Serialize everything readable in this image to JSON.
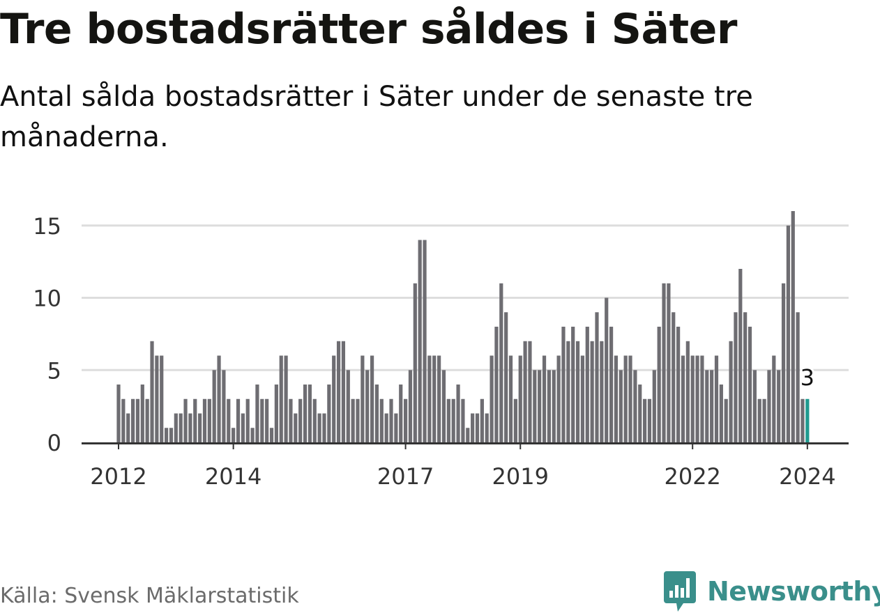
{
  "title": "Tre bostadsrätter såldes i Säter",
  "subtitle": "Antal sålda bostadsrätter i Säter under de senaste tre månaderna.",
  "source": "Källa: Svensk Mäklarstatistik",
  "brand": {
    "name": "Newsworthy",
    "icon": "newsworthy-logo-icon"
  },
  "colors": {
    "bar": "#6e6d72",
    "highlight": "#1f9a8f",
    "grid": "#dddddd",
    "axis": "#333333",
    "brand": "#3a8f8b"
  },
  "chart_data": {
    "type": "bar",
    "title": "Tre bostadsrätter såldes i Säter",
    "xlabel": "",
    "ylabel": "",
    "ylim": [
      0,
      16
    ],
    "yticks": [
      0,
      5,
      10,
      15
    ],
    "xticks": [
      {
        "label": "2012",
        "index": 0
      },
      {
        "label": "2014",
        "index": 24
      },
      {
        "label": "2017",
        "index": 60
      },
      {
        "label": "2019",
        "index": 84
      },
      {
        "label": "2022",
        "index": 120
      },
      {
        "label": "2024",
        "index": 144
      }
    ],
    "categories_start": "2012-01",
    "frequency": "monthly",
    "series": [
      {
        "name": "Antal sålda bostadsrätter",
        "values": [
          4,
          3,
          2,
          3,
          3,
          4,
          3,
          7,
          6,
          6,
          1,
          1,
          2,
          2,
          3,
          2,
          3,
          2,
          3,
          3,
          5,
          6,
          5,
          3,
          1,
          3,
          2,
          3,
          1,
          4,
          3,
          3,
          1,
          4,
          6,
          6,
          3,
          2,
          3,
          4,
          4,
          3,
          2,
          2,
          4,
          6,
          7,
          7,
          5,
          3,
          3,
          6,
          5,
          6,
          4,
          3,
          2,
          3,
          2,
          4,
          3,
          5,
          11,
          14,
          14,
          6,
          6,
          6,
          5,
          3,
          3,
          4,
          3,
          1,
          2,
          2,
          3,
          2,
          6,
          8,
          11,
          9,
          6,
          3,
          6,
          7,
          7,
          5,
          5,
          6,
          5,
          5,
          6,
          8,
          7,
          8,
          7,
          6,
          8,
          7,
          9,
          7,
          10,
          8,
          6,
          5,
          6,
          6,
          5,
          4,
          3,
          3,
          5,
          8,
          11,
          11,
          9,
          8,
          6,
          7,
          6,
          6,
          6,
          5,
          5,
          6,
          4,
          3,
          7,
          9,
          12,
          9,
          8,
          5,
          3,
          3,
          5,
          6,
          5,
          11,
          15,
          16,
          9,
          3,
          3
        ]
      }
    ],
    "highlight": {
      "index": 144,
      "label": "3"
    }
  }
}
